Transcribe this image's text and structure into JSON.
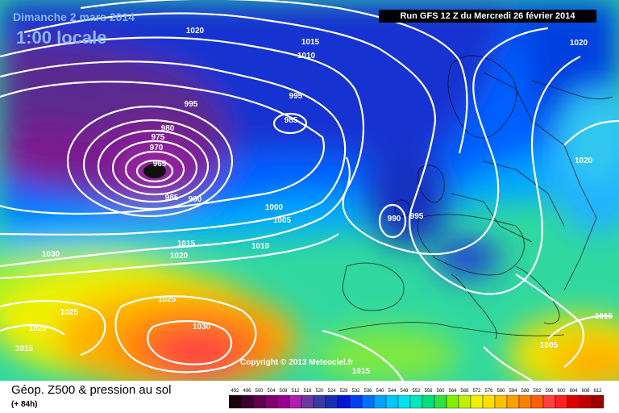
{
  "header": {
    "date": "Dimanche 2 mars 2014",
    "time": "1:00 locale",
    "run": "Run GFS 12 Z du Mercredi 26 février 2014"
  },
  "copyright": "Copyright © 2013 Meteociel.fr",
  "legend": {
    "title": "Géop. Z500 & pression au sol",
    "subtitle": "(+ 84h)",
    "ticks": [
      "492",
      "496",
      "500",
      "504",
      "508",
      "512",
      "516",
      "520",
      "524",
      "528",
      "532",
      "536",
      "540",
      "544",
      "548",
      "552",
      "556",
      "560",
      "564",
      "568",
      "572",
      "576",
      "580",
      "584",
      "588",
      "592",
      "596",
      "600",
      "604",
      "608",
      "612"
    ],
    "colors": [
      "#1a0010",
      "#3a0030",
      "#600050",
      "#800070",
      "#9a0090",
      "#b020b0",
      "#6a3aa0",
      "#3a3aa0",
      "#1830b0",
      "#0018d0",
      "#0040f0",
      "#0070ff",
      "#00a0ff",
      "#00c8ff",
      "#00e0f0",
      "#00e8c0",
      "#00e080",
      "#30e040",
      "#80f000",
      "#c0f000",
      "#f0f000",
      "#ffe000",
      "#ffc000",
      "#ffa000",
      "#ff8000",
      "#ff6000",
      "#ff4040",
      "#ff2020",
      "#e00000",
      "#c00000",
      "#a00000"
    ]
  },
  "isobars": [
    {
      "id": "p1020-nw",
      "label": "1020"
    },
    {
      "id": "p1015-n",
      "label": "1015"
    },
    {
      "id": "p1010-n",
      "label": "1010"
    },
    {
      "id": "p1020-ne",
      "label": "1020"
    },
    {
      "id": "p995-a",
      "label": "995"
    },
    {
      "id": "p995-b",
      "label": "995"
    },
    {
      "id": "p985-a",
      "label": "985"
    },
    {
      "id": "p980",
      "label": "980"
    },
    {
      "id": "p975",
      "label": "975"
    },
    {
      "id": "p970",
      "label": "970"
    },
    {
      "id": "p965",
      "label": "965"
    },
    {
      "id": "p985-b",
      "label": "985"
    },
    {
      "id": "p990-a",
      "label": "990"
    },
    {
      "id": "p1020-e",
      "label": "1020"
    },
    {
      "id": "p1000",
      "label": "1000"
    },
    {
      "id": "p1005-a",
      "label": "1005"
    },
    {
      "id": "p990-b",
      "label": "990"
    },
    {
      "id": "p995-c",
      "label": "995"
    },
    {
      "id": "p1015-a",
      "label": "1015"
    },
    {
      "id": "p1010-a",
      "label": "1010"
    },
    {
      "id": "p1030-a",
      "label": "1030"
    },
    {
      "id": "p1020-a",
      "label": "1020"
    },
    {
      "id": "p1025-a",
      "label": "1025"
    },
    {
      "id": "p1025-b",
      "label": "1025"
    },
    {
      "id": "p1030-b",
      "label": "1030"
    },
    {
      "id": "p1020-b",
      "label": "1020"
    },
    {
      "id": "p1015-b",
      "label": "1015"
    },
    {
      "id": "p1015-c",
      "label": "1015"
    },
    {
      "id": "p1005-b",
      "label": "1005"
    },
    {
      "id": "p1015-d",
      "label": "1015"
    }
  ]
}
